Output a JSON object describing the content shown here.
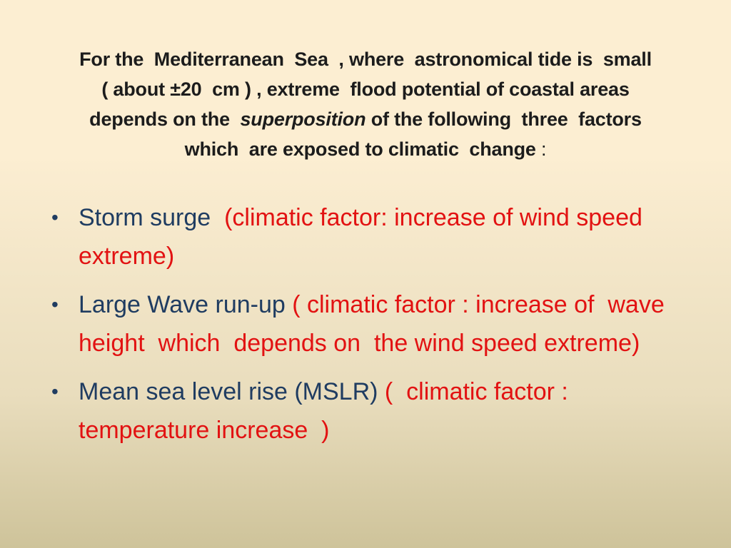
{
  "slide": {
    "background": {
      "top_color": "#FCEED2",
      "mid_color": "#E9DDBD",
      "bottom_color": "#CEC39A"
    },
    "title": {
      "color": "#1C1C1C",
      "lines": [
        [
          {
            "t": "For the  Mediterranean  Sea  , where  astronomical tide is  small"
          }
        ],
        [
          {
            "t": "( about ±20  cm ) , extreme  flood potential of coastal areas"
          }
        ],
        [
          {
            "t": "depends on the  "
          },
          {
            "t": "superposition",
            "italic": true
          },
          {
            "t": " of the following  three  factors"
          }
        ],
        [
          {
            "t": "which  are exposed to climatic  change "
          },
          {
            "t": ":",
            "regular": true
          }
        ]
      ]
    },
    "bullets": {
      "marker": "•",
      "text_color_primary": "#1F3C61",
      "text_color_accent": "#E21212",
      "items": [
        {
          "segments": [
            {
              "t": "Storm surge  ",
              "c": "primary"
            },
            {
              "t": "(climatic factor: increase of wind speed extreme)",
              "c": "accent"
            }
          ]
        },
        {
          "segments": [
            {
              "t": "Large Wave run-up ",
              "c": "primary"
            },
            {
              "t": "( climatic factor : increase of  wave  height  which  depends on  the wind speed extreme)",
              "c": "accent"
            }
          ]
        },
        {
          "segments": [
            {
              "t": "Mean sea level rise (MSLR) ",
              "c": "primary"
            },
            {
              "t": "(  climatic factor : temperature increase  )",
              "c": "accent"
            }
          ]
        }
      ]
    }
  }
}
